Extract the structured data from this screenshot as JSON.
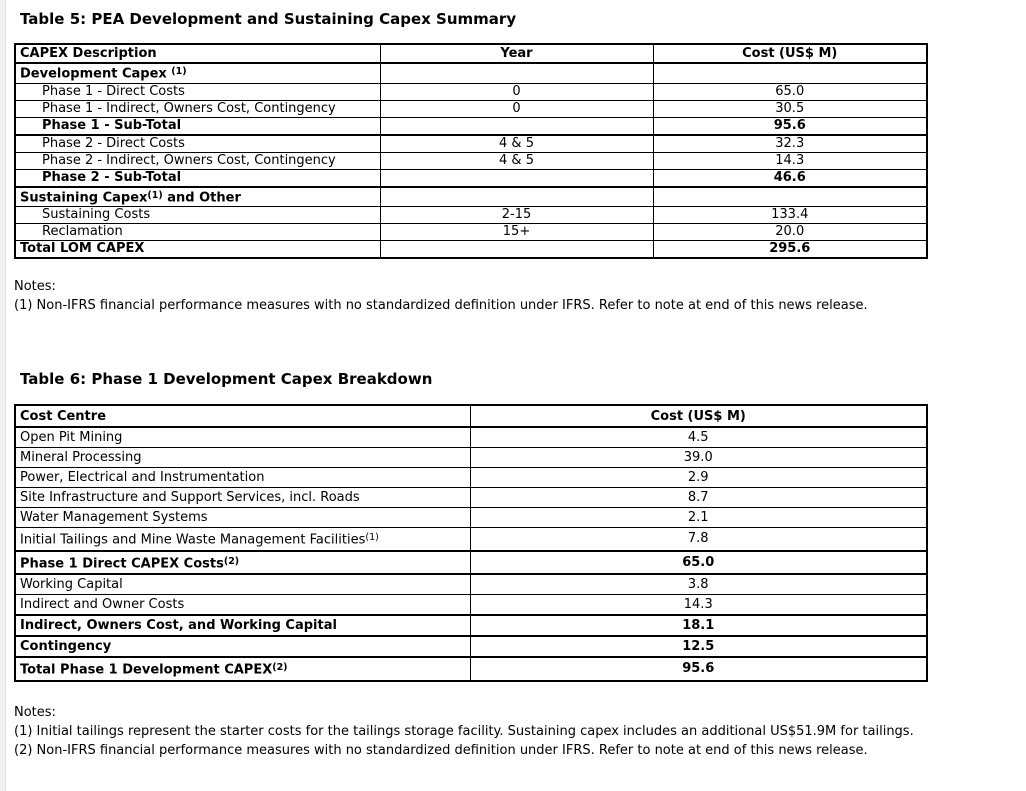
{
  "table5": {
    "title": "Table 5: PEA Development and Sustaining Capex Summary",
    "columns": [
      "CAPEX Description",
      "Year",
      "Cost (US$ M)"
    ],
    "rows": [
      {
        "type": "section",
        "cells": [
          [
            {
              "t": "Development Capex "
            },
            {
              "t": "(1)",
              "sup": true
            }
          ],
          [],
          []
        ]
      },
      {
        "type": "item",
        "cells": [
          [
            {
              "t": "Phase 1 - Direct Costs"
            }
          ],
          [
            {
              "t": "0"
            }
          ],
          [
            {
              "t": "65.0"
            }
          ]
        ]
      },
      {
        "type": "item",
        "cells": [
          [
            {
              "t": "Phase 1 - Indirect, Owners Cost, Contingency"
            }
          ],
          [
            {
              "t": "0"
            }
          ],
          [
            {
              "t": "30.5"
            }
          ]
        ]
      },
      {
        "type": "subtotal",
        "cells": [
          [
            {
              "t": "Phase 1 - Sub-Total"
            }
          ],
          [],
          [
            {
              "t": "95.6"
            }
          ]
        ]
      },
      {
        "type": "item",
        "cells": [
          [
            {
              "t": "Phase 2 - Direct Costs"
            }
          ],
          [
            {
              "t": "4 & 5"
            }
          ],
          [
            {
              "t": "32.3"
            }
          ]
        ]
      },
      {
        "type": "item",
        "cells": [
          [
            {
              "t": "Phase 2 - Indirect, Owners Cost, Contingency"
            }
          ],
          [
            {
              "t": "4 & 5"
            }
          ],
          [
            {
              "t": "14.3"
            }
          ]
        ]
      },
      {
        "type": "subtotal",
        "cells": [
          [
            {
              "t": "Phase 2 - Sub-Total"
            }
          ],
          [],
          [
            {
              "t": "46.6"
            }
          ]
        ]
      },
      {
        "type": "section",
        "cells": [
          [
            {
              "t": "Sustaining Capex"
            },
            {
              "t": "(1)",
              "sup": true
            },
            {
              "t": " and Other"
            }
          ],
          [],
          []
        ]
      },
      {
        "type": "item",
        "cells": [
          [
            {
              "t": "Sustaining Costs"
            }
          ],
          [
            {
              "t": "2-15"
            }
          ],
          [
            {
              "t": "133.4"
            }
          ]
        ]
      },
      {
        "type": "item",
        "cells": [
          [
            {
              "t": "Reclamation"
            }
          ],
          [
            {
              "t": "15+"
            }
          ],
          [
            {
              "t": "20.0"
            }
          ]
        ]
      },
      {
        "type": "total",
        "cells": [
          [
            {
              "t": "Total LOM CAPEX"
            }
          ],
          [],
          [
            {
              "t": "295.6"
            }
          ]
        ]
      }
    ],
    "notes": {
      "label": "Notes:",
      "items": [
        "(1) Non-IFRS financial performance measures with no standardized definition under IFRS. Refer to note at end of this news release."
      ]
    }
  },
  "table6": {
    "title": "Table 6: Phase 1 Development Capex Breakdown",
    "columns": [
      "Cost Centre",
      "Cost (US$ M)"
    ],
    "rows": [
      {
        "type": "item",
        "cells": [
          [
            {
              "t": "Open Pit Mining"
            }
          ],
          [
            {
              "t": "4.5"
            }
          ]
        ]
      },
      {
        "type": "item",
        "cells": [
          [
            {
              "t": "Mineral Processing"
            }
          ],
          [
            {
              "t": "39.0"
            }
          ]
        ]
      },
      {
        "type": "item",
        "cells": [
          [
            {
              "t": "Power, Electrical and Instrumentation"
            }
          ],
          [
            {
              "t": "2.9"
            }
          ]
        ]
      },
      {
        "type": "item",
        "cells": [
          [
            {
              "t": "Site Infrastructure and Support Services, incl. Roads"
            }
          ],
          [
            {
              "t": "8.7"
            }
          ]
        ]
      },
      {
        "type": "item",
        "cells": [
          [
            {
              "t": "Water Management Systems"
            }
          ],
          [
            {
              "t": "2.1"
            }
          ]
        ]
      },
      {
        "type": "item",
        "cells": [
          [
            {
              "t": "Initial Tailings and Mine Waste Management Facilities"
            },
            {
              "t": "(1)",
              "sup": true
            }
          ],
          [
            {
              "t": "7.8"
            }
          ]
        ]
      },
      {
        "type": "bold",
        "cells": [
          [
            {
              "t": "Phase 1 Direct CAPEX Costs"
            },
            {
              "t": "(2)",
              "sup": true
            }
          ],
          [
            {
              "t": "65.0"
            }
          ]
        ]
      },
      {
        "type": "item",
        "cells": [
          [
            {
              "t": "Working Capital"
            }
          ],
          [
            {
              "t": "3.8"
            }
          ]
        ]
      },
      {
        "type": "item",
        "cells": [
          [
            {
              "t": "Indirect and Owner Costs"
            }
          ],
          [
            {
              "t": "14.3"
            }
          ]
        ]
      },
      {
        "type": "bold",
        "cells": [
          [
            {
              "t": "Indirect, Owners Cost, and Working Capital"
            }
          ],
          [
            {
              "t": "18.1"
            }
          ]
        ]
      },
      {
        "type": "bold",
        "cells": [
          [
            {
              "t": "Contingency"
            }
          ],
          [
            {
              "t": "12.5"
            }
          ]
        ]
      },
      {
        "type": "bold",
        "cells": [
          [
            {
              "t": "Total Phase 1 Development CAPEX"
            },
            {
              "t": "(2)",
              "sup": true
            }
          ],
          [
            {
              "t": "95.6"
            }
          ]
        ]
      }
    ],
    "notes": {
      "label": "Notes:",
      "items": [
        "(1) Initial tailings represent the starter costs for the tailings storage facility. Sustaining capex includes an additional US$51.9M for tailings.",
        "(2) Non-IFRS financial performance measures with no standardized definition under IFRS. Refer to note at end of this news release."
      ]
    }
  }
}
